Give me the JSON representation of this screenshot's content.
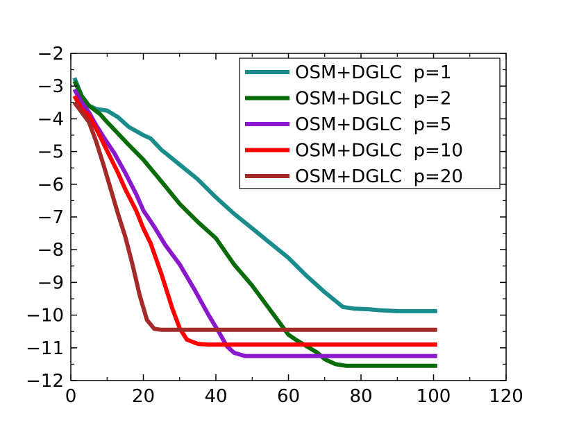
{
  "chart_data": {
    "type": "line",
    "title": "",
    "xlabel": "",
    "ylabel": "",
    "xlim": [
      0,
      120
    ],
    "ylim": [
      -12,
      -2
    ],
    "xticks": [
      0,
      20,
      40,
      60,
      80,
      100,
      120
    ],
    "yticks": [
      -2,
      -3,
      -4,
      -5,
      -6,
      -7,
      -8,
      -9,
      -10,
      -11,
      -12
    ],
    "grid": false,
    "legend_position": "top-right",
    "series": [
      {
        "name": "OSM+DGLC  p=1",
        "color": "#1a8c8c",
        "x": [
          1,
          3,
          5,
          7,
          10,
          13,
          16,
          20,
          22,
          25,
          30,
          35,
          40,
          45,
          50,
          55,
          60,
          65,
          70,
          75,
          78,
          82,
          85,
          90,
          95,
          101
        ],
        "y": [
          -2.75,
          -3.3,
          -3.6,
          -3.7,
          -3.75,
          -3.95,
          -4.25,
          -4.5,
          -4.6,
          -4.95,
          -5.4,
          -5.85,
          -6.4,
          -6.9,
          -7.35,
          -7.8,
          -8.25,
          -8.8,
          -9.3,
          -9.75,
          -9.8,
          -9.82,
          -9.85,
          -9.88,
          -9.88,
          -9.88
        ]
      },
      {
        "name": "OSM+DGLC  p=2",
        "color": "#0a6b0a",
        "x": [
          1,
          3,
          5,
          8,
          10,
          13,
          16,
          20,
          23,
          26,
          30,
          35,
          40,
          45,
          50,
          55,
          58,
          60,
          62,
          65,
          68,
          70,
          73,
          76,
          80,
          85,
          90,
          95,
          101
        ],
        "y": [
          -2.85,
          -3.3,
          -3.6,
          -3.85,
          -4.1,
          -4.45,
          -4.8,
          -5.25,
          -5.65,
          -6.05,
          -6.6,
          -7.15,
          -7.65,
          -8.45,
          -9.1,
          -9.85,
          -10.3,
          -10.6,
          -10.75,
          -10.95,
          -11.15,
          -11.35,
          -11.5,
          -11.55,
          -11.55,
          -11.55,
          -11.55,
          -11.55,
          -11.55
        ]
      },
      {
        "name": "OSM+DGLC  p=5",
        "color": "#8a18cc",
        "x": [
          1,
          3,
          5,
          7,
          9,
          12,
          15,
          18,
          20,
          23,
          26,
          30,
          34,
          38,
          41,
          43,
          45,
          48,
          50,
          55,
          60,
          70,
          80,
          90,
          101
        ],
        "y": [
          -3.1,
          -3.5,
          -3.8,
          -4.2,
          -4.55,
          -5.05,
          -5.65,
          -6.3,
          -6.8,
          -7.3,
          -7.85,
          -8.45,
          -9.2,
          -10.0,
          -10.55,
          -10.95,
          -11.15,
          -11.25,
          -11.25,
          -11.25,
          -11.25,
          -11.25,
          -11.25,
          -11.25,
          -11.25
        ]
      },
      {
        "name": "OSM+DGLC  p=10",
        "color": "#ff0000",
        "x": [
          1,
          3,
          5,
          7,
          9,
          11,
          13,
          15,
          18,
          20,
          22,
          25,
          28,
          30,
          32,
          35,
          38,
          40,
          45,
          50,
          60,
          70,
          80,
          90,
          101
        ],
        "y": [
          -3.3,
          -3.7,
          -3.9,
          -4.3,
          -4.75,
          -5.2,
          -5.65,
          -6.15,
          -6.8,
          -7.35,
          -7.8,
          -8.75,
          -9.8,
          -10.4,
          -10.75,
          -10.88,
          -10.9,
          -10.9,
          -10.9,
          -10.9,
          -10.9,
          -10.9,
          -10.9,
          -10.9,
          -10.9
        ]
      },
      {
        "name": "OSM+DGLC  p=20",
        "color": "#a52a2a",
        "x": [
          1,
          3,
          5,
          7,
          9,
          11,
          13,
          15,
          17,
          19,
          21,
          23,
          25,
          28,
          30,
          40,
          50,
          60,
          70,
          80,
          90,
          101
        ],
        "y": [
          -3.5,
          -3.8,
          -4.1,
          -4.7,
          -5.4,
          -6.15,
          -6.9,
          -7.6,
          -8.45,
          -9.4,
          -10.15,
          -10.42,
          -10.45,
          -10.45,
          -10.45,
          -10.45,
          -10.45,
          -10.45,
          -10.45,
          -10.45,
          -10.45,
          -10.45
        ]
      }
    ]
  }
}
